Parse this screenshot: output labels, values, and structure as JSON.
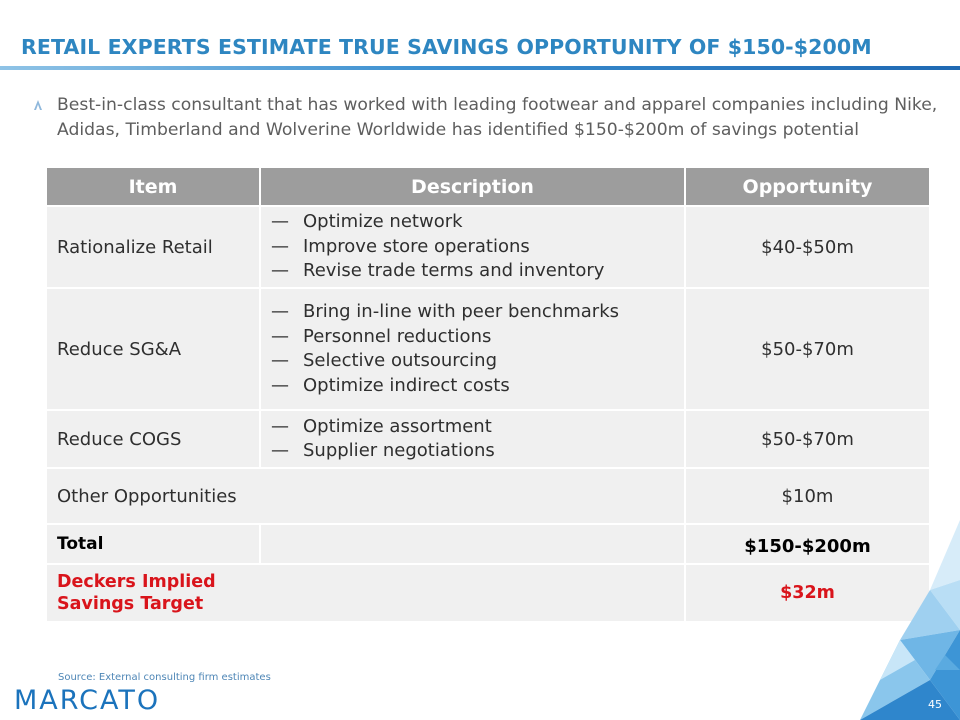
{
  "title": "RETAIL EXPERTS ESTIMATE TRUE SAVINGS OPPORTUNITY OF $150-$200M",
  "intro": "Best-in-class consultant that has worked with leading footwear and apparel companies including Nike, Adidas, Timberland and Wolverine Worldwide has identified $150-$200m of savings potential",
  "table": {
    "headers": [
      "Item",
      "Description",
      "Opportunity"
    ],
    "rows": [
      {
        "item": "Rationalize Retail",
        "desc": [
          "Optimize network",
          "Improve store operations",
          "Revise trade terms and inventory"
        ],
        "opp": "$40-$50m"
      },
      {
        "item": "Reduce SG&A",
        "desc": [
          "Bring in-line with peer benchmarks",
          "Personnel reductions",
          "Selective outsourcing",
          "Optimize indirect costs"
        ],
        "opp": "$50-$70m"
      },
      {
        "item": "Reduce COGS",
        "desc": [
          "Optimize assortment",
          "Supplier negotiations"
        ],
        "opp": "$50-$70m"
      }
    ],
    "other": {
      "item": "Other Opportunities",
      "opp": "$10m"
    },
    "total": {
      "item": "Total",
      "opp": "$150-$200m"
    },
    "deckers": {
      "item": "Deckers Implied Savings Target",
      "opp": "$32m"
    },
    "dash_char": "—"
  },
  "source": "Source: External consulting firm estimates",
  "logo": "MARCATO",
  "page_number": "45",
  "colors": {
    "title_blue": "#2e86c1",
    "header_gray": "#9d9d9d",
    "cell_gray": "#f0f0f0",
    "highlight_red": "#d9141b",
    "logo_blue": "#1b73bc"
  },
  "icons": {
    "bullet": "triangle-outline-icon",
    "decoration": "triangle-mosaic"
  }
}
